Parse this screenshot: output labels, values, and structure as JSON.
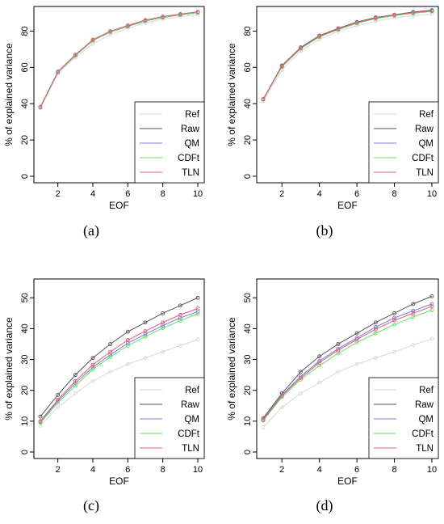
{
  "chart_data": [
    {
      "type": "line",
      "caption": "(a)",
      "xlabel": "EOF",
      "ylabel": "% of explained variance",
      "xlim": [
        1,
        10
      ],
      "ylim": [
        0,
        90
      ],
      "xticks": [
        2,
        4,
        6,
        8,
        10
      ],
      "yticks": [
        0,
        20,
        40,
        60,
        80
      ],
      "legend_position": "bottom-right",
      "x": [
        1,
        2,
        3,
        4,
        5,
        6,
        7,
        8,
        9,
        10
      ],
      "series": [
        {
          "name": "Ref",
          "color": "#d8d8d8",
          "values": [
            37.5,
            56.5,
            65.5,
            73,
            78,
            81.5,
            84.5,
            86.5,
            88,
            89
          ]
        },
        {
          "name": "Raw",
          "color": "#555555",
          "values": [
            38,
            57.3,
            66.5,
            74.8,
            79.5,
            82.6,
            85.6,
            87.5,
            89,
            90.2
          ]
        },
        {
          "name": "QM",
          "color": "#7b7bd6",
          "values": [
            38.2,
            57.5,
            66.8,
            75,
            79.7,
            82.9,
            85.9,
            87.8,
            89.3,
            90.5
          ]
        },
        {
          "name": "CDFt",
          "color": "#66e066",
          "values": [
            38.1,
            57.4,
            66.6,
            74.9,
            79.6,
            82.7,
            85.7,
            87.6,
            89.1,
            90.3
          ]
        },
        {
          "name": "TLN",
          "color": "#e05c7c",
          "values": [
            38.3,
            57.7,
            67,
            75.3,
            80,
            83.1,
            86.1,
            88,
            89.4,
            90.6
          ]
        }
      ]
    },
    {
      "type": "line",
      "caption": "(b)",
      "xlabel": "EOF",
      "ylabel": "% of explained variance",
      "xlim": [
        1,
        10
      ],
      "ylim": [
        0,
        90
      ],
      "xticks": [
        2,
        4,
        6,
        8,
        10
      ],
      "yticks": [
        0,
        20,
        40,
        60,
        80
      ],
      "legend_position": "bottom-right",
      "x": [
        1,
        2,
        3,
        4,
        5,
        6,
        7,
        8,
        9,
        10
      ],
      "series": [
        {
          "name": "Ref",
          "color": "#d8d8d8",
          "values": [
            41.5,
            58.5,
            69,
            75.5,
            80,
            83,
            85.5,
            87.3,
            88.5,
            89.5
          ]
        },
        {
          "name": "Raw",
          "color": "#555555",
          "values": [
            42.5,
            61,
            71,
            77.5,
            81.5,
            85,
            87.5,
            89,
            90.5,
            91.5
          ]
        },
        {
          "name": "QM",
          "color": "#7b7bd6",
          "values": [
            42.3,
            60.5,
            70.5,
            77,
            81,
            84.5,
            87,
            88.7,
            90,
            91
          ]
        },
        {
          "name": "CDFt",
          "color": "#66e066",
          "values": [
            42.2,
            60.3,
            70.3,
            76.8,
            80.8,
            84.3,
            86.8,
            88.5,
            89.8,
            90.8
          ]
        },
        {
          "name": "TLN",
          "color": "#e05c7c",
          "values": [
            42.4,
            60.7,
            70.7,
            77.2,
            81.2,
            84.7,
            87.2,
            88.9,
            90.2,
            91.2
          ]
        }
      ]
    },
    {
      "type": "line",
      "caption": "(c)",
      "xlabel": "EOF",
      "ylabel": "% of explained variance",
      "xlim": [
        1,
        10
      ],
      "ylim": [
        0,
        50
      ],
      "xticks": [
        2,
        4,
        6,
        8,
        10
      ],
      "yticks": [
        0,
        10,
        20,
        30,
        40,
        50
      ],
      "legend_position": "bottom-right",
      "x": [
        1,
        2,
        3,
        4,
        5,
        6,
        7,
        8,
        9,
        10
      ],
      "series": [
        {
          "name": "Ref",
          "color": "#d8d8d8",
          "values": [
            8.5,
            14.5,
            19,
            23,
            26,
            28.5,
            30.5,
            32.5,
            34.5,
            36.5
          ]
        },
        {
          "name": "Raw",
          "color": "#555555",
          "values": [
            11.5,
            18.5,
            25,
            30.5,
            35,
            39,
            42,
            45,
            47.5,
            50
          ]
        },
        {
          "name": "QM",
          "color": "#7b7bd6",
          "values": [
            9.8,
            16.5,
            22.3,
            27.5,
            31.5,
            35.3,
            38.2,
            41,
            43.5,
            45.5
          ]
        },
        {
          "name": "CDFt",
          "color": "#66e066",
          "values": [
            9.5,
            16,
            21.5,
            26.8,
            30.8,
            34.5,
            37.4,
            40.2,
            42.6,
            44.8
          ]
        },
        {
          "name": "TLN",
          "color": "#e05c7c",
          "values": [
            10,
            17,
            23,
            28.3,
            32.5,
            36.3,
            39.2,
            42,
            44.5,
            46.5
          ]
        }
      ]
    },
    {
      "type": "line",
      "caption": "(d)",
      "xlabel": "EOF",
      "ylabel": "% of explained variance",
      "xlim": [
        1,
        10
      ],
      "ylim": [
        0,
        50
      ],
      "xticks": [
        2,
        4,
        6,
        8,
        10
      ],
      "yticks": [
        0,
        10,
        20,
        30,
        40,
        50
      ],
      "legend_position": "bottom-right",
      "x": [
        1,
        2,
        3,
        4,
        5,
        6,
        7,
        8,
        9,
        10
      ],
      "series": [
        {
          "name": "Ref",
          "color": "#d8d8d8",
          "values": [
            8,
            14.5,
            19,
            22.5,
            26,
            28.5,
            30.5,
            32.5,
            34.7,
            36.7
          ]
        },
        {
          "name": "Raw",
          "color": "#555555",
          "values": [
            11,
            19,
            26,
            31,
            35,
            38.5,
            42,
            45,
            48,
            50.5
          ]
        },
        {
          "name": "QM",
          "color": "#7b7bd6",
          "values": [
            10.5,
            18.5,
            24.5,
            29.5,
            33.5,
            37,
            40.5,
            43.5,
            45.8,
            48
          ]
        },
        {
          "name": "CDFt",
          "color": "#66e066",
          "values": [
            10.2,
            17.8,
            23.5,
            28,
            32,
            35.5,
            38.5,
            41.3,
            43.8,
            46
          ]
        },
        {
          "name": "TLN",
          "color": "#e05c7c",
          "values": [
            10.4,
            18.2,
            24,
            29,
            33,
            36.5,
            39.8,
            42.7,
            45,
            47.2
          ]
        }
      ]
    }
  ]
}
